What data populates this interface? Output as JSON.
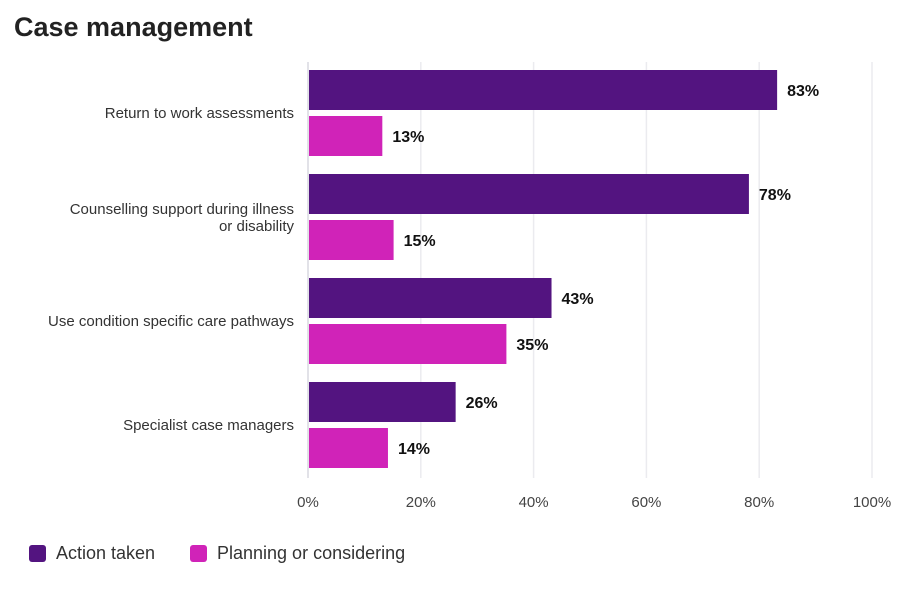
{
  "chart_data": {
    "type": "bar",
    "orientation": "horizontal",
    "title": "Case management",
    "categories": [
      "Return to work assessments",
      "Counselling support during illness or disability",
      "Use condition specific care pathways",
      "Specialist case managers"
    ],
    "series": [
      {
        "name": "Action taken",
        "values": [
          83,
          78,
          43,
          26
        ],
        "color": "#531480"
      },
      {
        "name": "Planning or considering",
        "values": [
          13,
          15,
          35,
          14
        ],
        "color": "#d023b8"
      }
    ],
    "xlim": [
      0,
      100
    ],
    "xticks": [
      "0%",
      "20%",
      "40%",
      "60%",
      "80%",
      "100%"
    ],
    "value_suffix": "%",
    "grid": true,
    "legend": "bottom-left"
  }
}
